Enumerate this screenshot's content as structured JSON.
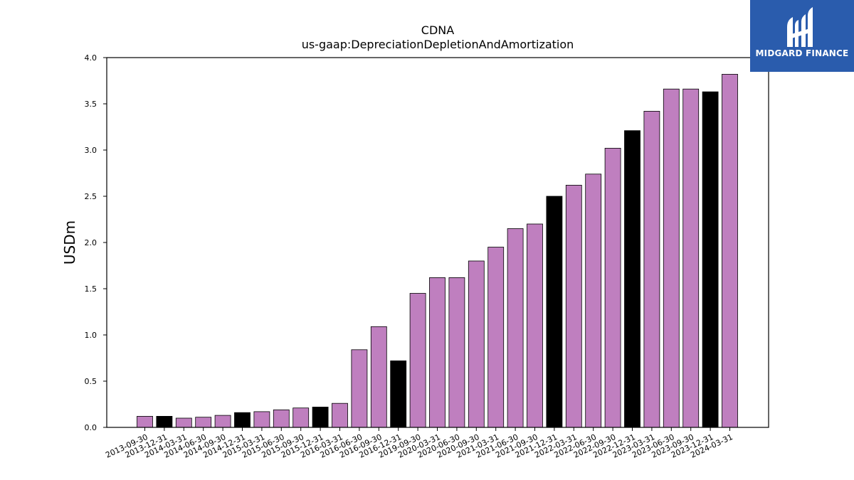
{
  "chart_data": {
    "type": "bar",
    "title": "CDNA",
    "subtitle": "us-gaap:DepreciationDepletionAndAmortization",
    "xlabel": "",
    "ylabel": "USDm",
    "ylim": [
      0,
      4.0
    ],
    "yticks": [
      "0.0",
      "0.5",
      "1.0",
      "1.5",
      "2.0",
      "2.5",
      "3.0",
      "3.5",
      "4.0"
    ],
    "grid": false,
    "categories": [
      "2013-09-30",
      "2013-12-31",
      "2014-03-31",
      "2014-06-30",
      "2014-09-30",
      "2014-12-31",
      "2015-03-31",
      "2015-06-30",
      "2015-09-30",
      "2015-12-31",
      "2016-03-31",
      "2016-06-30",
      "2016-09-30",
      "2016-12-31",
      "2019-09-30",
      "2020-03-31",
      "2020-06-30",
      "2020-09-30",
      "2021-03-31",
      "2021-06-30",
      "2021-09-30",
      "2021-12-31",
      "2022-03-31",
      "2022-06-30",
      "2022-09-30",
      "2022-12-31",
      "2023-03-31",
      "2023-06-30",
      "2023-09-30",
      "2023-12-31",
      "2024-03-31"
    ],
    "values": [
      0.12,
      0.12,
      0.1,
      0.11,
      0.13,
      0.16,
      0.17,
      0.19,
      0.21,
      0.22,
      0.26,
      0.84,
      1.09,
      0.72,
      1.45,
      1.62,
      1.62,
      1.8,
      1.95,
      2.15,
      2.2,
      2.5,
      2.62,
      2.74,
      3.02,
      3.21,
      3.42,
      3.66,
      3.66,
      3.63,
      3.82
    ],
    "annual": [
      false,
      true,
      false,
      false,
      false,
      true,
      false,
      false,
      false,
      true,
      false,
      false,
      false,
      true,
      false,
      false,
      false,
      false,
      false,
      false,
      false,
      true,
      false,
      false,
      false,
      true,
      false,
      false,
      false,
      true,
      false
    ],
    "colors": {
      "quarterly": "#bf7fbf",
      "annual": "#000000",
      "edge": "#000000"
    }
  },
  "logo": {
    "text": "MIDGARD FINANCE",
    "background": "#2a5cad"
  }
}
